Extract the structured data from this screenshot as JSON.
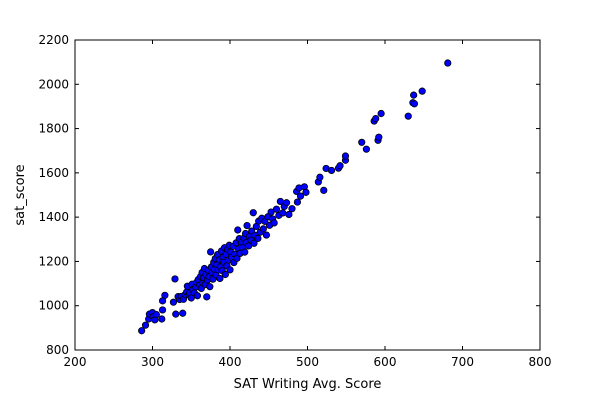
{
  "chart_data": {
    "type": "scatter",
    "title": "",
    "xlabel": "SAT Writing Avg. Score",
    "ylabel": "sat_score",
    "xlim": [
      200,
      800
    ],
    "ylim": [
      800,
      2200
    ],
    "xticks": [
      200,
      300,
      400,
      500,
      600,
      700,
      800
    ],
    "yticks": [
      800,
      1000,
      1200,
      1400,
      1600,
      1800,
      2000,
      2200
    ],
    "xtick_labels": [
      "200",
      "300",
      "400",
      "500",
      "600",
      "700",
      "800"
    ],
    "ytick_labels": [
      "800",
      "1000",
      "1200",
      "1400",
      "1600",
      "1800",
      "2000",
      "2200"
    ],
    "grid": false,
    "legend": "none",
    "marker_color": "#0000ff",
    "marker_edge_color": "#000000",
    "series": [
      {
        "points": [
          [
            286,
            887
          ],
          [
            291,
            912
          ],
          [
            295,
            940
          ],
          [
            296,
            962
          ],
          [
            300,
            969
          ],
          [
            301,
            951
          ],
          [
            303,
            936
          ],
          [
            305,
            960
          ],
          [
            312,
            940
          ],
          [
            313,
            981
          ],
          [
            313,
            1022
          ],
          [
            316,
            1047
          ],
          [
            327,
            1016
          ],
          [
            329,
            1121
          ],
          [
            330,
            962
          ],
          [
            333,
            1041
          ],
          [
            335,
            1028
          ],
          [
            337,
            1042
          ],
          [
            339,
            966
          ],
          [
            340,
            1029
          ],
          [
            342,
            1050
          ],
          [
            344,
            1062
          ],
          [
            345,
            1088
          ],
          [
            347,
            1048
          ],
          [
            348,
            1058
          ],
          [
            350,
            1035
          ],
          [
            351,
            1097
          ],
          [
            352,
            1072
          ],
          [
            354,
            1058
          ],
          [
            356,
            1085
          ],
          [
            357,
            1106
          ],
          [
            358,
            1045
          ],
          [
            359,
            1118
          ],
          [
            361,
            1093
          ],
          [
            362,
            1132
          ],
          [
            363,
            1078
          ],
          [
            364,
            1150
          ],
          [
            365,
            1104
          ],
          [
            366,
            1126
          ],
          [
            367,
            1168
          ],
          [
            368,
            1095
          ],
          [
            369,
            1141
          ],
          [
            370,
            1040
          ],
          [
            371,
            1116
          ],
          [
            372,
            1160
          ],
          [
            373,
            1131
          ],
          [
            374,
            1086
          ],
          [
            375,
            1243
          ],
          [
            376,
            1175
          ],
          [
            377,
            1149
          ],
          [
            378,
            1120
          ],
          [
            379,
            1196
          ],
          [
            380,
            1164
          ],
          [
            381,
            1213
          ],
          [
            382,
            1139
          ],
          [
            383,
            1185
          ],
          [
            384,
            1231
          ],
          [
            385,
            1162
          ],
          [
            386,
            1207
          ],
          [
            387,
            1123
          ],
          [
            388,
            1176
          ],
          [
            389,
            1247
          ],
          [
            390,
            1158
          ],
          [
            391,
            1219
          ],
          [
            392,
            1196
          ],
          [
            393,
            1262
          ],
          [
            394,
            1141
          ],
          [
            395,
            1232
          ],
          [
            396,
            1180
          ],
          [
            397,
            1255
          ],
          [
            398,
            1206
          ],
          [
            399,
            1273
          ],
          [
            400,
            1162
          ],
          [
            401,
            1242
          ],
          [
            402,
            1219
          ],
          [
            404,
            1268
          ],
          [
            405,
            1195
          ],
          [
            406,
            1233
          ],
          [
            408,
            1284
          ],
          [
            409,
            1214
          ],
          [
            410,
            1342
          ],
          [
            411,
            1257
          ],
          [
            412,
            1303
          ],
          [
            413,
            1236
          ],
          [
            415,
            1285
          ],
          [
            416,
            1263
          ],
          [
            418,
            1305
          ],
          [
            419,
            1242
          ],
          [
            420,
            1326
          ],
          [
            421,
            1285
          ],
          [
            422,
            1362
          ],
          [
            424,
            1270
          ],
          [
            425,
            1313
          ],
          [
            427,
            1296
          ],
          [
            428,
            1337
          ],
          [
            430,
            1420
          ],
          [
            431,
            1282
          ],
          [
            432,
            1318
          ],
          [
            434,
            1358
          ],
          [
            436,
            1304
          ],
          [
            437,
            1382
          ],
          [
            439,
            1332
          ],
          [
            441,
            1395
          ],
          [
            443,
            1347
          ],
          [
            445,
            1381
          ],
          [
            447,
            1319
          ],
          [
            449,
            1402
          ],
          [
            451,
            1363
          ],
          [
            453,
            1423
          ],
          [
            455,
            1392
          ],
          [
            457,
            1374
          ],
          [
            460,
            1436
          ],
          [
            463,
            1408
          ],
          [
            465,
            1471
          ],
          [
            468,
            1419
          ],
          [
            470,
            1448
          ],
          [
            473,
            1465
          ],
          [
            476,
            1412
          ],
          [
            480,
            1438
          ],
          [
            486,
            1516
          ],
          [
            487,
            1468
          ],
          [
            489,
            1532
          ],
          [
            491,
            1495
          ],
          [
            496,
            1537
          ],
          [
            498,
            1512
          ],
          [
            514,
            1559
          ],
          [
            516,
            1580
          ],
          [
            521,
            1521
          ],
          [
            524,
            1620
          ],
          [
            531,
            1611
          ],
          [
            540,
            1621
          ],
          [
            542,
            1632
          ],
          [
            549,
            1657
          ],
          [
            549,
            1676
          ],
          [
            570,
            1738
          ],
          [
            576,
            1707
          ],
          [
            586,
            1834
          ],
          [
            588,
            1845
          ],
          [
            591,
            1747
          ],
          [
            592,
            1761
          ],
          [
            595,
            1868
          ],
          [
            630,
            1856
          ],
          [
            636,
            1917
          ],
          [
            637,
            1951
          ],
          [
            638,
            1912
          ],
          [
            648,
            1969
          ],
          [
            681,
            2096
          ]
        ]
      }
    ]
  }
}
